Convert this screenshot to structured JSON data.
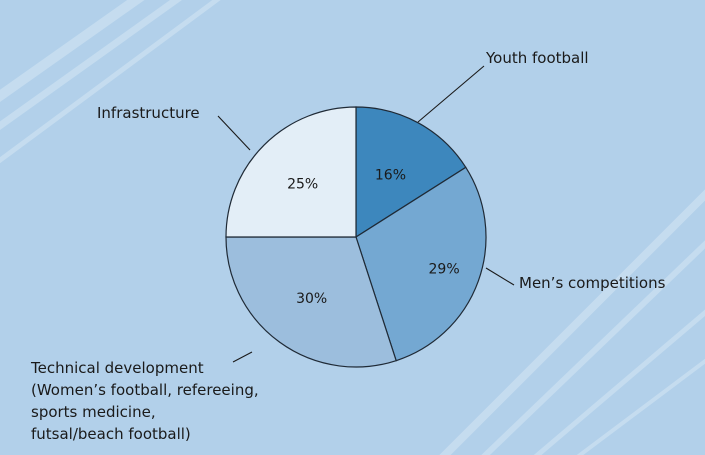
{
  "chart_data": {
    "type": "pie",
    "slices": [
      {
        "label": "Youth football",
        "value": 16,
        "value_label": "16%",
        "color": "#3d87bd"
      },
      {
        "label": "Men’s competitions",
        "value": 29,
        "value_label": "29%",
        "color": "#74a8d2"
      },
      {
        "label_lines": [
          "Technical development",
          "(Women’s football, refereeing,",
          "sports medicine,",
          "futsal/beach football)"
        ],
        "value": 30,
        "value_label": "30%",
        "color": "#9cbedd"
      },
      {
        "label": "Infrastructure",
        "value": 25,
        "value_label": "25%",
        "color": "#e3eef7"
      }
    ],
    "start_angle": "12 o'clock",
    "direction": "clockwise",
    "legend": "none (labels beside slices)"
  },
  "colors": {
    "background": "#b2d0ea",
    "stripes": "#dbeaf6",
    "slice_outline": "#1f2a36"
  }
}
